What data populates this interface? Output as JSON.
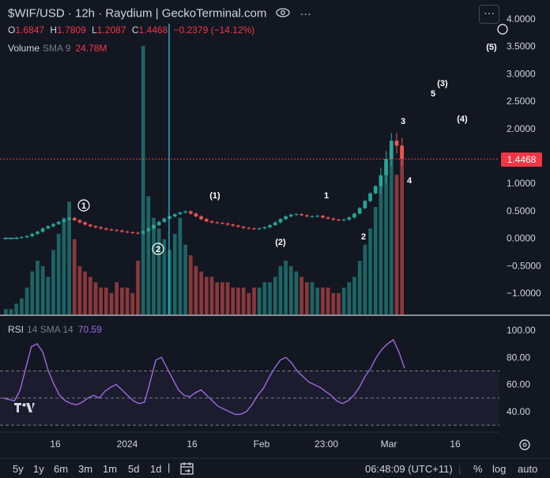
{
  "header": {
    "title": "$WIF/USD · 12h · Raydium | GeckoTerminal.com",
    "ohlc": [
      {
        "k": "O",
        "v": "1.6847"
      },
      {
        "k": "H",
        "v": "1.7809"
      },
      {
        "k": "L",
        "v": "1.2087"
      },
      {
        "k": "C",
        "v": "1.4468"
      },
      {
        "k": "",
        "v": "−0.2379 (−14.12%)"
      }
    ],
    "volume": {
      "label": "Volume",
      "sma": "SMA 9",
      "value": "24.78M"
    },
    "more_label": "···"
  },
  "rsi_legend": {
    "label": "RSI",
    "sma": "14 SMA 14",
    "value": "70.59"
  },
  "price_tag": "1.4468",
  "bottom_bar": {
    "ranges": [
      "5y",
      "1y",
      "6m",
      "3m",
      "1m",
      "5d",
      "1d"
    ],
    "time": "06:48:09 (UTC+11)",
    "pct": "%",
    "log": "log",
    "auto": "auto"
  },
  "colors": {
    "up": "#26a69a",
    "down": "#ef5350",
    "rsi": "#9c6ade",
    "price_line": "#f23645",
    "background": "#131722",
    "grid": "#2a2e39"
  },
  "chart_data": [
    {
      "type": "candlestick",
      "title": "$WIF/USD · 12h · Raydium | GeckoTerminal.com",
      "x_ticks": [
        "16",
        "2024",
        "16",
        "Feb",
        "23:00",
        "Mar",
        "16"
      ],
      "y_ticks": [
        "4.0000",
        "3.5000",
        "3.0000",
        "2.5000",
        "2.0000",
        "1.5000",
        "1.0000",
        "0.5000",
        "0.0000",
        "−0.5000",
        "−1.0000"
      ],
      "ylim": [
        -1.4,
        4.2
      ],
      "last_price": 1.4468,
      "close_series": [
        0.0,
        0.0,
        0.01,
        0.02,
        0.04,
        0.08,
        0.12,
        0.18,
        0.22,
        0.26,
        0.3,
        0.34,
        0.37,
        0.33,
        0.29,
        0.25,
        0.22,
        0.2,
        0.18,
        0.16,
        0.15,
        0.14,
        0.12,
        0.11,
        0.1,
        0.09,
        0.13,
        0.18,
        0.24,
        0.3,
        0.36,
        0.4,
        0.44,
        0.47,
        0.49,
        0.45,
        0.4,
        0.35,
        0.31,
        0.29,
        0.28,
        0.27,
        0.25,
        0.23,
        0.21,
        0.19,
        0.18,
        0.17,
        0.18,
        0.2,
        0.24,
        0.29,
        0.35,
        0.4,
        0.43,
        0.44,
        0.42,
        0.4,
        0.4,
        0.41,
        0.38,
        0.36,
        0.34,
        0.33,
        0.34,
        0.38,
        0.45,
        0.55,
        0.68,
        0.82,
        0.95,
        1.15,
        1.45,
        1.78,
        1.69,
        1.45
      ],
      "annotations": [
        "1",
        "(1)",
        "2",
        "(2)",
        "1",
        "2",
        "3",
        "4",
        "5",
        "(3)",
        "(4)",
        "(5)"
      ]
    },
    {
      "type": "bar",
      "title": "Volume SMA 9",
      "values": [
        0.1,
        0.1,
        0.2,
        0.3,
        0.5,
        0.8,
        1.0,
        0.9,
        0.7,
        1.2,
        1.5,
        1.8,
        2.1,
        1.4,
        0.9,
        0.8,
        0.7,
        0.6,
        0.5,
        0.5,
        0.4,
        0.6,
        0.5,
        0.5,
        0.4,
        1.0,
        5.0,
        2.2,
        1.8,
        1.6,
        1.4,
        1.2,
        1.5,
        1.8,
        1.3,
        1.1,
        0.9,
        0.8,
        0.7,
        0.7,
        0.6,
        0.6,
        0.6,
        0.5,
        0.5,
        0.5,
        0.4,
        0.5,
        0.5,
        0.6,
        0.6,
        0.7,
        0.9,
        1.0,
        0.9,
        0.8,
        0.7,
        0.6,
        0.6,
        0.5,
        0.5,
        0.5,
        0.4,
        0.4,
        0.5,
        0.6,
        0.7,
        1.0,
        1.3,
        1.6,
        2.0,
        2.4,
        2.8,
        3.0,
        2.6,
        3.1
      ]
    },
    {
      "type": "line",
      "title": "RSI 14 SMA 14",
      "y_ticks": [
        "100.00",
        "80.00",
        "60.00",
        "40.00"
      ],
      "ylim": [
        28,
        104
      ],
      "bands": [
        70,
        50,
        30
      ],
      "values": [
        50,
        49,
        48,
        56,
        72,
        88,
        90,
        84,
        70,
        60,
        52,
        48,
        46,
        45,
        47,
        50,
        52,
        50,
        55,
        58,
        60,
        56,
        52,
        48,
        46,
        47,
        62,
        78,
        80,
        72,
        64,
        56,
        52,
        51,
        54,
        56,
        52,
        48,
        44,
        42,
        40,
        38,
        38,
        40,
        45,
        52,
        57,
        65,
        72,
        78,
        80,
        76,
        70,
        66,
        62,
        60,
        58,
        55,
        52,
        48,
        46,
        48,
        52,
        58,
        66,
        72,
        80,
        86,
        90,
        93,
        84,
        72
      ]
    }
  ]
}
